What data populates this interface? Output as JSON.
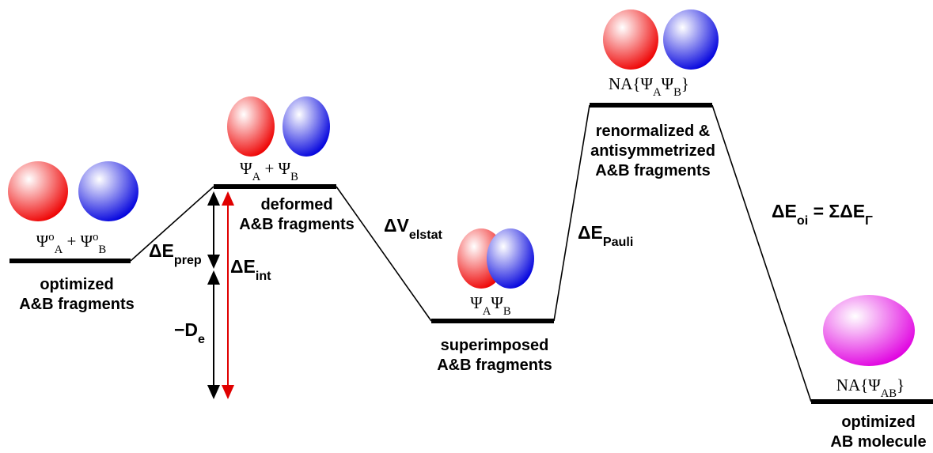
{
  "levels": [
    {
      "wavefunction": [
        {
          "text": "Ψ"
        },
        {
          "sup": "o"
        },
        {
          "sub": "A"
        },
        {
          "text": " + Ψ"
        },
        {
          "sup": "o"
        },
        {
          "sub": "B"
        }
      ],
      "description": [
        "optimized",
        "A&B fragments"
      ]
    },
    {
      "wavefunction": [
        {
          "text": "Ψ"
        },
        {
          "sub": "A"
        },
        {
          "text": " + Ψ"
        },
        {
          "sub": "B"
        }
      ],
      "description": [
        "deformed",
        "A&B fragments"
      ]
    },
    {
      "wavefunction": [
        {
          "text": "Ψ"
        },
        {
          "sub": "A"
        },
        {
          "text": "Ψ"
        },
        {
          "sub": "B"
        }
      ],
      "description": [
        "superimposed",
        "A&B fragments"
      ]
    },
    {
      "wavefunction": [
        {
          "text": "NA{Ψ"
        },
        {
          "sub": "A"
        },
        {
          "text": "Ψ"
        },
        {
          "sub": "B"
        },
        {
          "text": "}"
        }
      ],
      "description": [
        "renormalized &",
        "antisymmetrized",
        "A&B fragments"
      ]
    },
    {
      "wavefunction": [
        {
          "text": "NA{Ψ"
        },
        {
          "sub": "AB"
        },
        {
          "text": "}"
        }
      ],
      "description": [
        "optimized",
        "AB molecule"
      ]
    }
  ],
  "energy_terms": [
    {
      "label": [
        {
          "text": "ΔE"
        },
        {
          "sub": "prep"
        }
      ]
    },
    {
      "label": [
        {
          "text": "ΔV"
        },
        {
          "sub": "elstat"
        }
      ]
    },
    {
      "label": [
        {
          "text": "ΔE"
        },
        {
          "sub": "Pauli"
        }
      ]
    },
    {
      "label": [
        {
          "text": "ΔE"
        },
        {
          "sub": "oi"
        },
        {
          "text": " = ΣΔE"
        },
        {
          "sub": "Γ"
        }
      ]
    },
    {
      "label": [
        {
          "text": "ΔE"
        },
        {
          "sub": "int"
        }
      ]
    },
    {
      "label": [
        {
          "text": "−D"
        },
        {
          "sub": "e"
        }
      ]
    }
  ]
}
